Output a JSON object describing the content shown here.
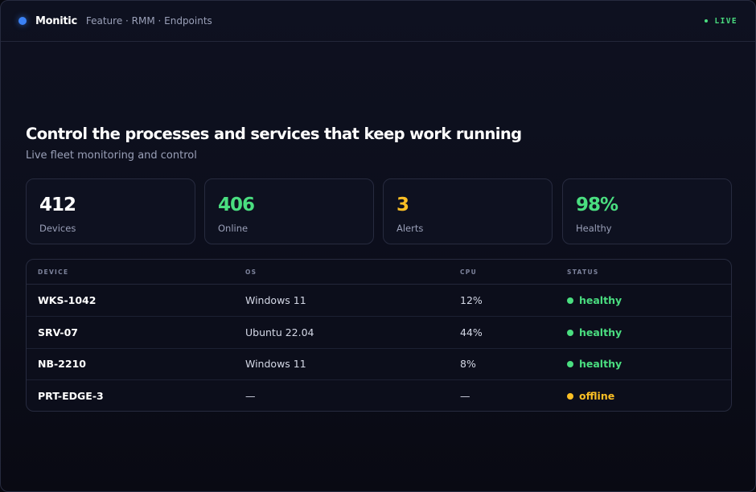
{
  "app": {
    "name": "Monitic",
    "breadcrumb": "Feature · RMM · Endpoints",
    "live_label": "LIVE"
  },
  "hero": {
    "title": "Control the processes and services that keep work running",
    "subtitle": "Live fleet monitoring and control"
  },
  "stats": [
    {
      "value": "412",
      "label": "Devices",
      "color": "#ffffff"
    },
    {
      "value": "406",
      "label": "Online",
      "color": "#4ade80"
    },
    {
      "value": "3",
      "label": "Alerts",
      "color": "#fbbf24"
    },
    {
      "value": "98%",
      "label": "Healthy",
      "color": "#4ade80"
    }
  ],
  "table": {
    "columns": [
      "DEVICE",
      "OS",
      "CPU",
      "STATUS"
    ],
    "rows": [
      {
        "device": "WKS-1042",
        "os": "Windows 11",
        "cpu": "12%",
        "status": "healthy",
        "status_color": "#4ade80"
      },
      {
        "device": "SRV-07",
        "os": "Ubuntu 22.04",
        "cpu": "44%",
        "status": "healthy",
        "status_color": "#4ade80"
      },
      {
        "device": "NB-2210",
        "os": "Windows 11",
        "cpu": "8%",
        "status": "healthy",
        "status_color": "#4ade80"
      },
      {
        "device": "PRT-EDGE-3",
        "os": "—",
        "cpu": "—",
        "status": "offline",
        "status_color": "#fbbf24"
      }
    ]
  },
  "colors": {
    "accent": "#3b82f6",
    "healthy": "#4ade80",
    "warning": "#fbbf24"
  }
}
